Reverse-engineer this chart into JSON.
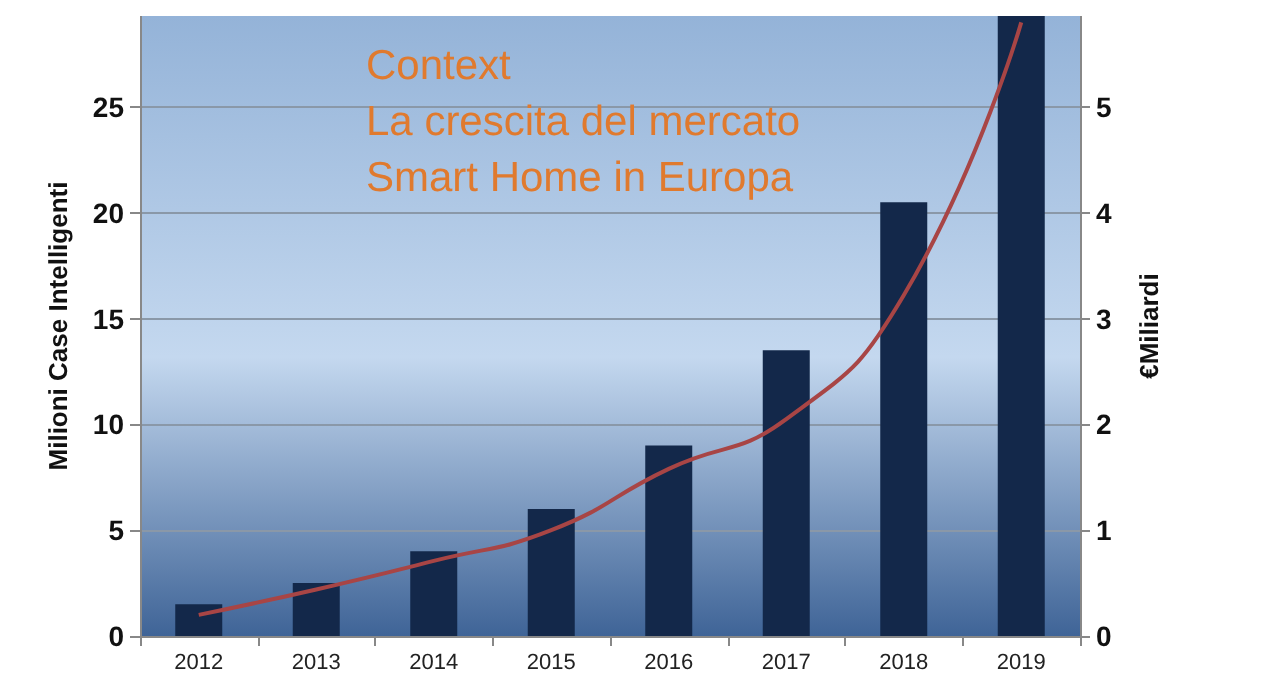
{
  "chart_data": {
    "type": "bar",
    "title": "Context\nLa crescita del mercato\nSmart Home in Europa",
    "categories": [
      "2012",
      "2013",
      "2014",
      "2015",
      "2016",
      "2017",
      "2018",
      "2019"
    ],
    "series": [
      {
        "color": "#13284a",
        "values": [
          1.5,
          2.5,
          4,
          6,
          9,
          13.5,
          20.5,
          29.3
        ]
      },
      {
        "type": "line",
        "axis": "y2",
        "color": "#a84545",
        "values": [
          0.2,
          0.44,
          0.71,
          1.0,
          1.58,
          2.05,
          3.22,
          5.8
        ]
      }
    ],
    "ylabel": "Milioni Case Intelligenti",
    "y2label": "€Miliardi",
    "ylim": [
      0,
      29.3
    ],
    "yticks": [
      0,
      5,
      10,
      15,
      20,
      25
    ],
    "y2lim": [
      0,
      5.86
    ],
    "y2ticks": [
      0,
      1,
      2,
      3,
      4,
      5
    ],
    "grid": "y",
    "marker": "none",
    "line_style": "solid"
  }
}
